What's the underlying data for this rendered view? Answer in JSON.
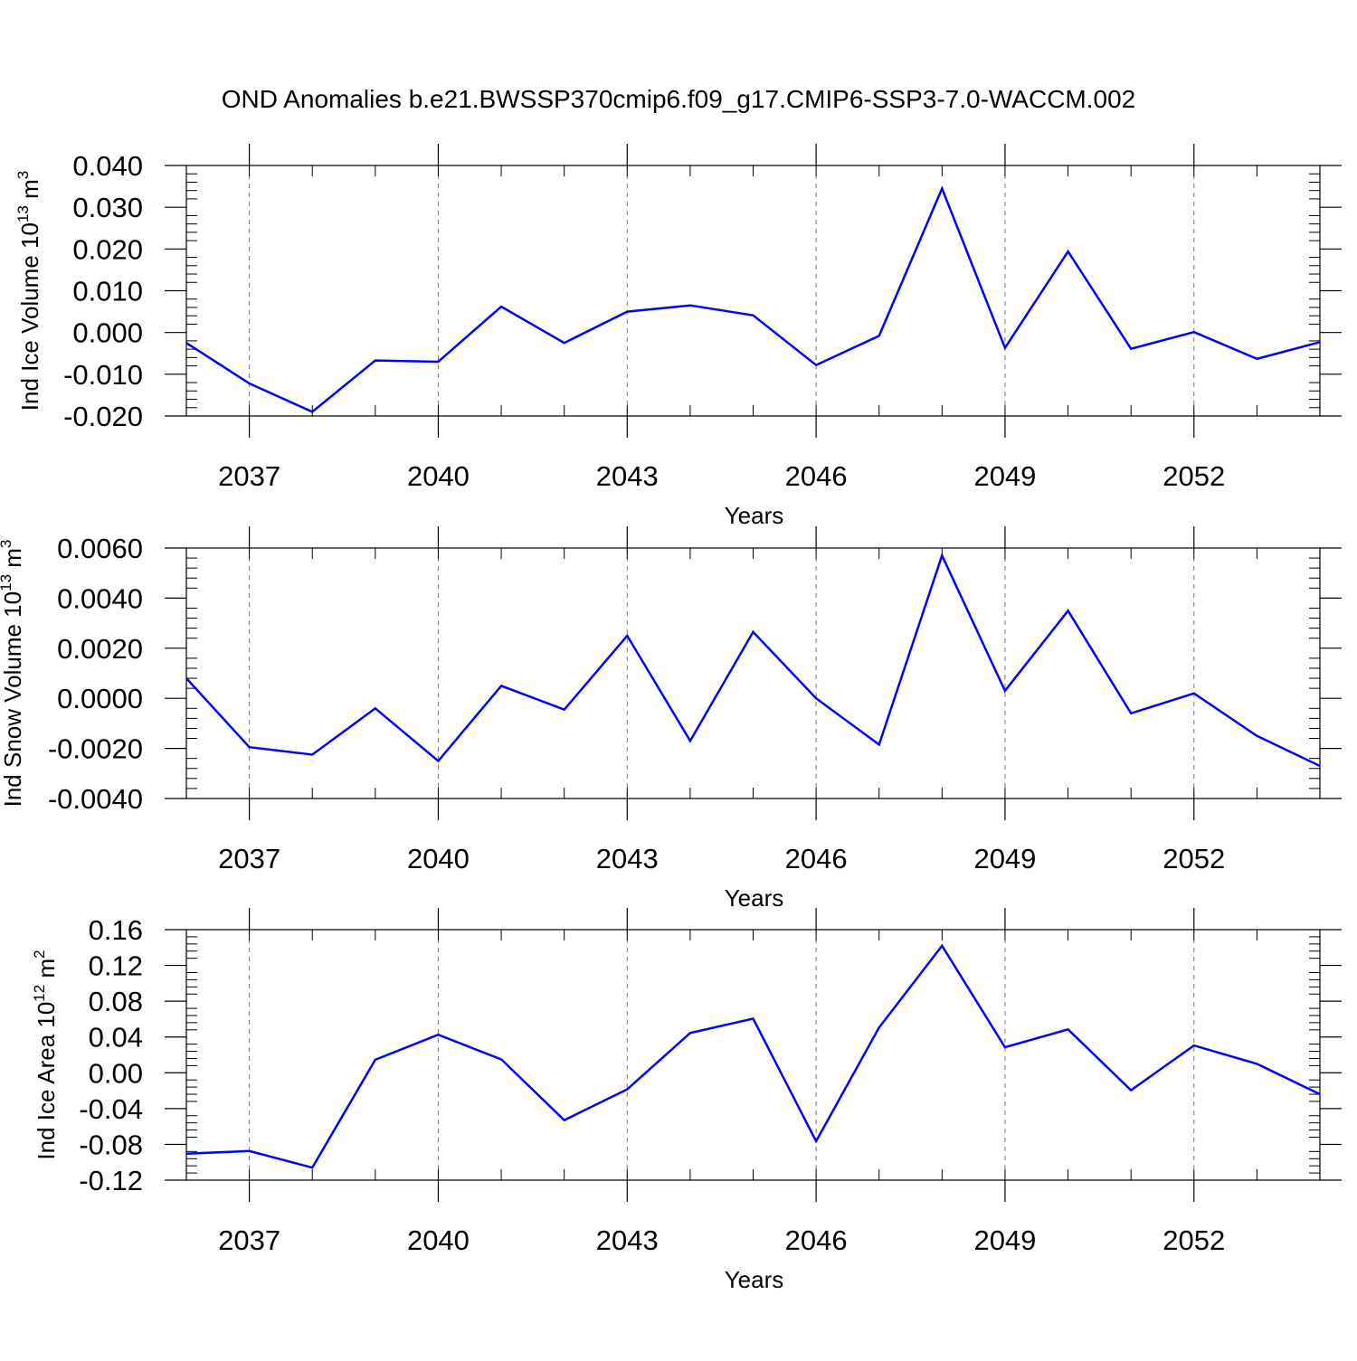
{
  "title": "OND Anomalies b.e21.BWSSP370cmip6.f09_g17.CMIP6-SSP3-7.0-WACCM.002",
  "line_color": "#0000ff",
  "chart_data": [
    {
      "type": "line",
      "ylabel": {
        "main": "Ind Ice Volume 10",
        "sup": "13",
        "unit": " m",
        "unit_sup": "3"
      },
      "xlabel": "Years",
      "xlim": [
        2036,
        2054
      ],
      "ylim": [
        -0.02,
        0.04
      ],
      "yticks": [
        -0.02,
        -0.01,
        0.0,
        0.01,
        0.02,
        0.03,
        0.04
      ],
      "ytick_labels": [
        "-0.020",
        "-0.010",
        "0.000",
        "0.010",
        "0.020",
        "0.030",
        "0.040"
      ],
      "xticks": [
        2037,
        2040,
        2043,
        2046,
        2049,
        2052
      ],
      "xtick_labels": [
        "2037",
        "2040",
        "2043",
        "2046",
        "2049",
        "2052"
      ],
      "x": [
        2036,
        2037,
        2038,
        2039,
        2040,
        2041,
        2042,
        2043,
        2044,
        2045,
        2046,
        2047,
        2048,
        2049,
        2050,
        2051,
        2052,
        2053,
        2054
      ],
      "y": [
        -0.0025,
        -0.0122,
        -0.019,
        -0.0067,
        -0.007,
        0.0062,
        -0.0025,
        0.005,
        0.0065,
        0.0041,
        -0.0078,
        -0.0008,
        0.0345,
        -0.0037,
        0.0194,
        -0.0039,
        0.0001,
        -0.0063,
        -0.0023
      ],
      "grid": "vertical dashed at labeled years"
    },
    {
      "type": "line",
      "ylabel": {
        "main": "Ind Snow Volume 10",
        "sup": "13",
        "unit": " m",
        "unit_sup": "3"
      },
      "xlabel": "Years",
      "xlim": [
        2036,
        2054
      ],
      "ylim": [
        -0.004,
        0.006
      ],
      "yticks": [
        -0.004,
        -0.002,
        0.0,
        0.002,
        0.004,
        0.006
      ],
      "ytick_labels": [
        "-0.0040",
        "-0.0020",
        "0.0000",
        "0.0020",
        "0.0040",
        "0.0060"
      ],
      "xticks": [
        2037,
        2040,
        2043,
        2046,
        2049,
        2052
      ],
      "xtick_labels": [
        "2037",
        "2040",
        "2043",
        "2046",
        "2049",
        "2052"
      ],
      "x": [
        2036,
        2037,
        2038,
        2039,
        2040,
        2041,
        2042,
        2043,
        2044,
        2045,
        2046,
        2047,
        2048,
        2049,
        2050,
        2051,
        2052,
        2053,
        2054
      ],
      "y": [
        0.0008,
        -0.00195,
        -0.00225,
        -0.0004,
        -0.0025,
        0.0005,
        -0.00045,
        0.0025,
        -0.0017,
        0.00265,
        0.0,
        -0.00185,
        0.0057,
        0.0003,
        0.0035,
        -0.0006,
        0.0002,
        -0.0015,
        -0.0027
      ],
      "grid": "vertical dashed at labeled years"
    },
    {
      "type": "line",
      "ylabel": {
        "main": "Ind Ice Area 10",
        "sup": "12",
        "unit": " m",
        "unit_sup": "2"
      },
      "xlabel": "Years",
      "xlim": [
        2036,
        2054
      ],
      "ylim": [
        -0.12,
        0.16
      ],
      "yticks": [
        -0.12,
        -0.08,
        -0.04,
        0.0,
        0.04,
        0.08,
        0.12,
        0.16
      ],
      "ytick_labels": [
        "-0.12",
        "-0.08",
        "-0.04",
        "0.00",
        "0.04",
        "0.08",
        "0.12",
        "0.16"
      ],
      "xticks": [
        2037,
        2040,
        2043,
        2046,
        2049,
        2052
      ],
      "xtick_labels": [
        "2037",
        "2040",
        "2043",
        "2046",
        "2049",
        "2052"
      ],
      "x": [
        2036,
        2037,
        2038,
        2039,
        2040,
        2041,
        2042,
        2043,
        2044,
        2045,
        2046,
        2047,
        2048,
        2049,
        2050,
        2051,
        2052,
        2053,
        2054
      ],
      "y": [
        -0.0905,
        -0.0875,
        -0.106,
        0.0145,
        0.0425,
        0.015,
        -0.053,
        -0.0185,
        0.0445,
        0.0605,
        -0.0765,
        0.0505,
        0.142,
        0.0285,
        0.0485,
        -0.0195,
        0.0305,
        0.01,
        -0.024
      ],
      "grid": "vertical dashed at labeled years"
    }
  ]
}
